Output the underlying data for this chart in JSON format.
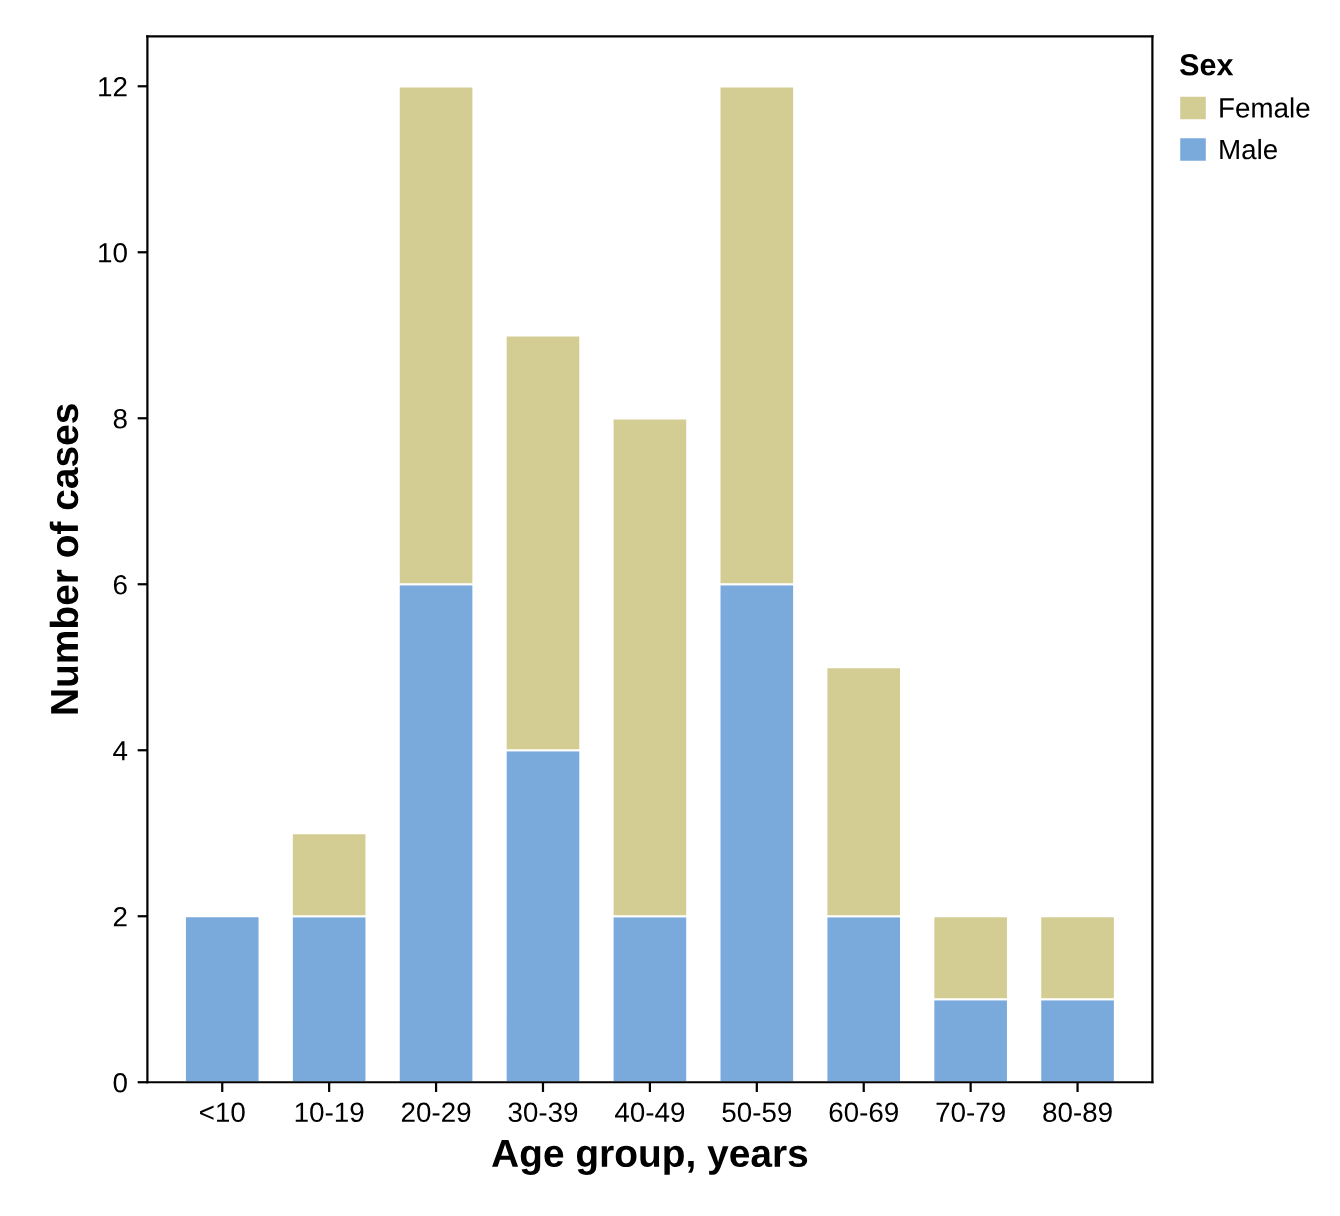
{
  "chart_data": {
    "type": "bar",
    "stacked": true,
    "xlabel": "Age group, years",
    "ylabel": "Number of cases",
    "legend_title": "Sex",
    "legend": "top right",
    "categories": [
      "<10",
      "10-19",
      "20-29",
      "30-39",
      "40-49",
      "50-59",
      "60-69",
      "70-79",
      "80-89"
    ],
    "series": [
      {
        "name": "Male",
        "color": "#7aaadc",
        "values": [
          2,
          2,
          6,
          4,
          2,
          6,
          2,
          1,
          1
        ]
      },
      {
        "name": "Female",
        "color": "#d3cc93",
        "values": [
          null,
          1,
          6,
          5,
          6,
          6,
          3,
          1,
          1
        ]
      }
    ],
    "ylim": [
      0,
      12.6
    ],
    "yticks": [
      0,
      2,
      4,
      6,
      8,
      10,
      12
    ],
    "grid": false
  }
}
